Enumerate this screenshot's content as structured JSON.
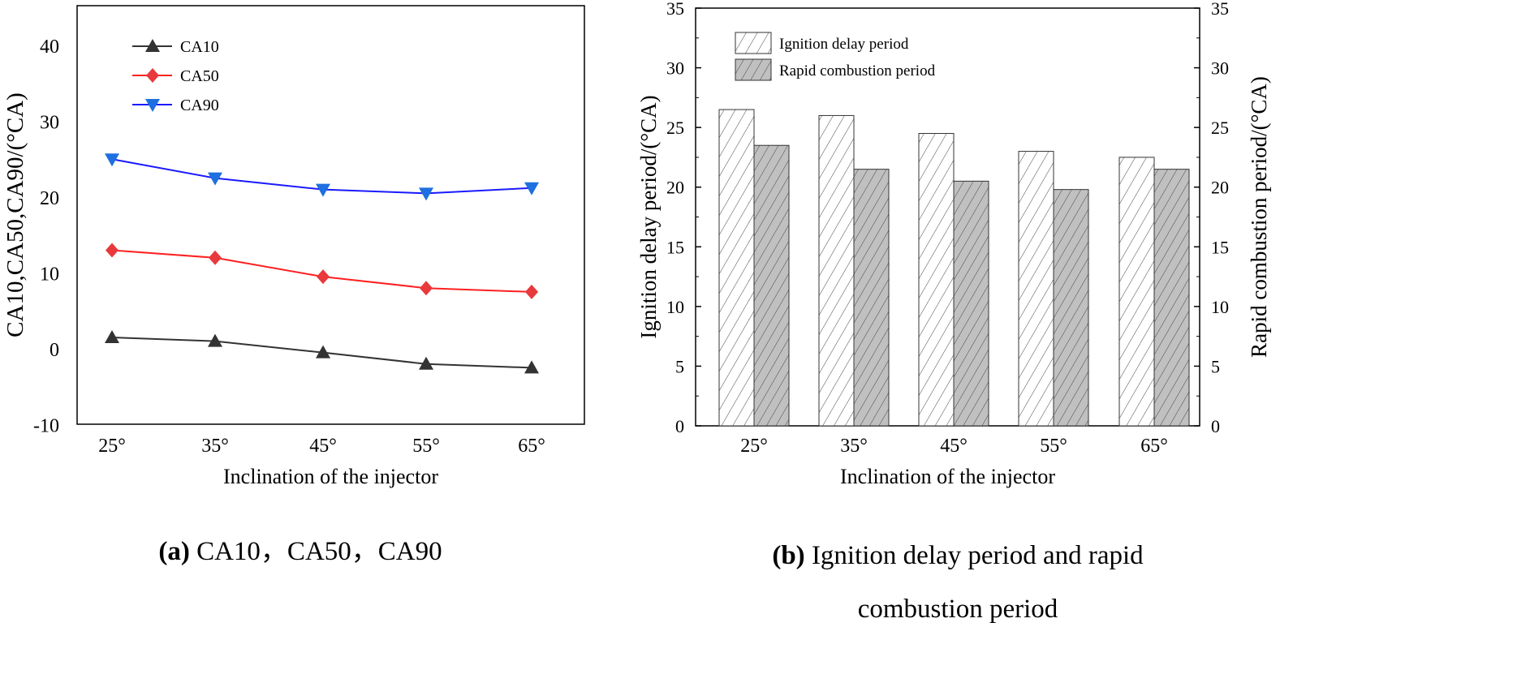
{
  "chart_data": [
    {
      "type": "line",
      "categories": [
        "25°",
        "35°",
        "45°",
        "55°",
        "65°"
      ],
      "xlabel": "Inclination of the injector",
      "ylabel": "CA10,CA50,CA90/(°CA)",
      "ylim": [
        -10,
        45
      ],
      "yticks": [
        -10,
        0,
        10,
        20,
        30,
        40
      ],
      "legend_position": "top-left",
      "grid": false,
      "series": [
        {
          "name": "CA10",
          "values": [
            1.5,
            1.0,
            -0.5,
            -2.0,
            -2.5
          ],
          "color": "#333333",
          "marker": "triangle-up"
        },
        {
          "name": "CA50",
          "values": [
            13.0,
            12.0,
            9.5,
            8.0,
            7.5
          ],
          "color": "#ff2020",
          "marker": "diamond",
          "marker_color": "#e8393c"
        },
        {
          "name": "CA90",
          "values": [
            25.0,
            22.5,
            21.0,
            20.5,
            21.2
          ],
          "color": "#1a1aff",
          "marker": "triangle-down",
          "marker_color": "#1e6fe0"
        }
      ],
      "caption_label": "(a)",
      "caption_text": " CA10，CA50，CA90"
    },
    {
      "type": "bar",
      "categories": [
        "25°",
        "35°",
        "45°",
        "55°",
        "65°"
      ],
      "xlabel": "Inclination of the injector",
      "ylabel": "Ignition delay period/(°CA)",
      "ylabel_right": "Rapid combustion period/(°CA)",
      "ylim": [
        0,
        35
      ],
      "yticks": [
        0,
        5,
        10,
        15,
        20,
        25,
        30,
        35
      ],
      "legend_position": "top-left",
      "grid": false,
      "series": [
        {
          "name": "Ignition delay period",
          "values": [
            26.5,
            26.0,
            24.5,
            23.0,
            22.5
          ],
          "fill": "#ffffff",
          "hatch": "diagonal"
        },
        {
          "name": "Rapid combustion period",
          "values": [
            23.5,
            21.5,
            20.5,
            19.8,
            21.5
          ],
          "fill": "#c0c0c0",
          "hatch": "diagonal"
        }
      ],
      "caption_label": "(b)",
      "caption_line1": " Ignition delay period and rapid",
      "caption_line2": "combustion period"
    }
  ]
}
